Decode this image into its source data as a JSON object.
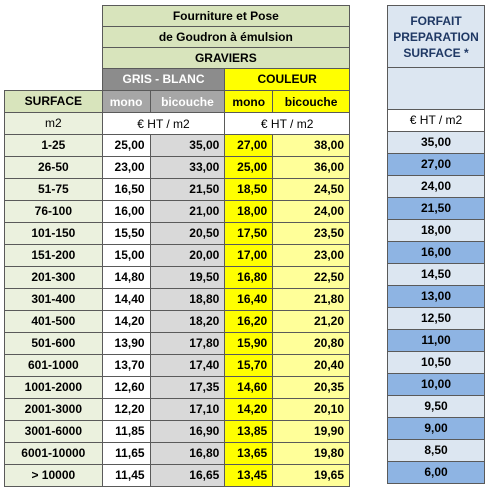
{
  "main": {
    "title_line1": "Fourniture et Pose",
    "title_line2": "de Goudron à émulsion",
    "graviers": "GRAVIERS",
    "group_grey": "GRIS - BLANC",
    "group_color": "COULEUR",
    "surface_label": "SURFACE",
    "mono": "mono",
    "bicouche": "bicouche",
    "unit_m2": "m2",
    "unit_price": "€ HT / m2"
  },
  "forfait": {
    "title_l1": "FORFAIT",
    "title_l2": "PREPARATION",
    "title_l3": "SURFACE *",
    "unit": "€ HT / m2"
  },
  "rows": [
    {
      "surface": "1-25",
      "gm": "25,00",
      "gb": "35,00",
      "cm": "27,00",
      "cb": "38,00",
      "f": "35,00"
    },
    {
      "surface": "26-50",
      "gm": "23,00",
      "gb": "33,00",
      "cm": "25,00",
      "cb": "36,00",
      "f": "27,00"
    },
    {
      "surface": "51-75",
      "gm": "16,50",
      "gb": "21,50",
      "cm": "18,50",
      "cb": "24,50",
      "f": "24,00"
    },
    {
      "surface": "76-100",
      "gm": "16,00",
      "gb": "21,00",
      "cm": "18,00",
      "cb": "24,00",
      "f": "21,50"
    },
    {
      "surface": "101-150",
      "gm": "15,50",
      "gb": "20,50",
      "cm": "17,50",
      "cb": "23,50",
      "f": "18,00"
    },
    {
      "surface": "151-200",
      "gm": "15,00",
      "gb": "20,00",
      "cm": "17,00",
      "cb": "23,00",
      "f": "16,00"
    },
    {
      "surface": "201-300",
      "gm": "14,80",
      "gb": "19,50",
      "cm": "16,80",
      "cb": "22,50",
      "f": "14,50"
    },
    {
      "surface": "301-400",
      "gm": "14,40",
      "gb": "18,80",
      "cm": "16,40",
      "cb": "21,80",
      "f": "13,00"
    },
    {
      "surface": "401-500",
      "gm": "14,20",
      "gb": "18,20",
      "cm": "16,20",
      "cb": "21,20",
      "f": "12,50"
    },
    {
      "surface": "501-600",
      "gm": "13,90",
      "gb": "17,80",
      "cm": "15,90",
      "cb": "20,80",
      "f": "11,00"
    },
    {
      "surface": "601-1000",
      "gm": "13,70",
      "gb": "17,40",
      "cm": "15,70",
      "cb": "20,40",
      "f": "10,50"
    },
    {
      "surface": "1001-2000",
      "gm": "12,60",
      "gb": "17,35",
      "cm": "14,60",
      "cb": "20,35",
      "f": "10,00"
    },
    {
      "surface": "2001-3000",
      "gm": "12,20",
      "gb": "17,10",
      "cm": "14,20",
      "cb": "20,10",
      "f": "9,50"
    },
    {
      "surface": "3001-6000",
      "gm": "11,85",
      "gb": "16,90",
      "cm": "13,85",
      "cb": "19,90",
      "f": "9,00"
    },
    {
      "surface": "6001-10000",
      "gm": "11,65",
      "gb": "16,80",
      "cm": "13,65",
      "cb": "19,80",
      "f": "8,50"
    },
    {
      "surface": "> 10000",
      "gm": "11,45",
      "gb": "16,65",
      "cm": "13,45",
      "cb": "19,65",
      "f": "6,00"
    }
  ]
}
